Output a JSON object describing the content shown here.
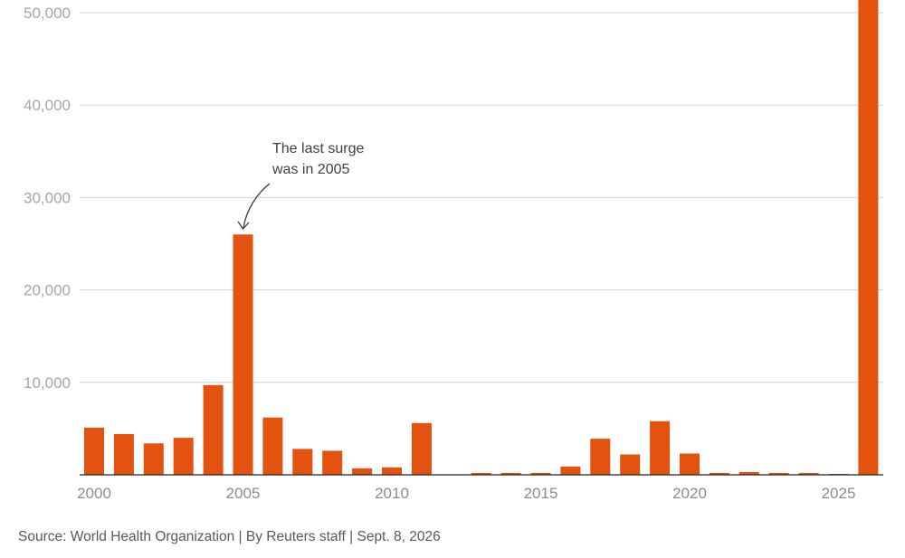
{
  "chart_data": {
    "type": "bar",
    "x": [
      2000,
      2001,
      2002,
      2003,
      2004,
      2005,
      2006,
      2007,
      2008,
      2009,
      2010,
      2011,
      2012,
      2013,
      2014,
      2015,
      2016,
      2017,
      2018,
      2019,
      2020,
      2021,
      2022,
      2023,
      2024,
      2025,
      2026
    ],
    "values": [
      5100,
      4400,
      3400,
      4000,
      9700,
      26000,
      6200,
      2800,
      2600,
      700,
      800,
      5600,
      0,
      200,
      200,
      200,
      900,
      3900,
      2200,
      5800,
      2300,
      200,
      300,
      200,
      200,
      100,
      53000
    ],
    "x_ticks": [
      "2000",
      "2005",
      "2010",
      "2015",
      "2020",
      "2025"
    ],
    "y_ticks": [
      "10,000",
      "20,000",
      "30,000",
      "40,000",
      "50,000"
    ],
    "ylim": [
      0,
      53000
    ],
    "grid": true,
    "bar_color": "#e4520f",
    "annotation": {
      "line1": "The last surge",
      "line2": "was in 2005",
      "year": 2005
    }
  },
  "footer": {
    "source": "Source: World Health Organization | By Reuters staff | Sept. 8, 2026"
  }
}
